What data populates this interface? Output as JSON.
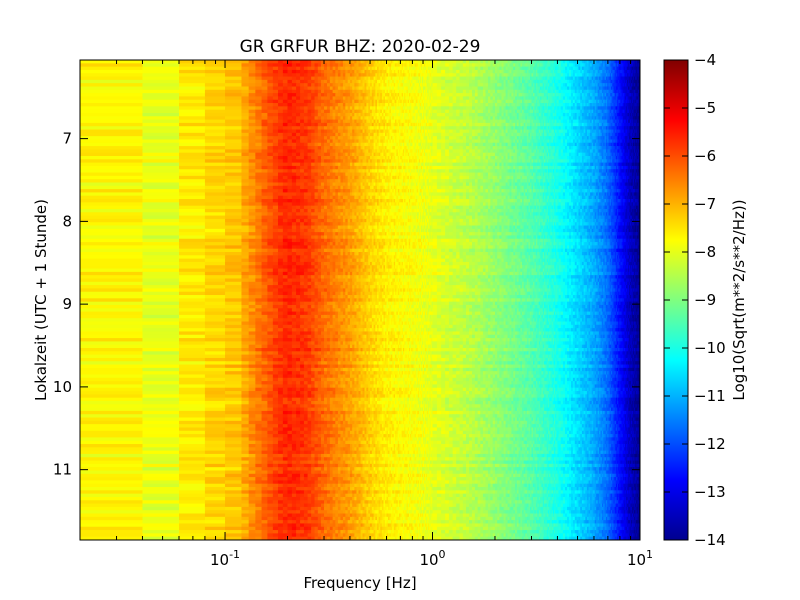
{
  "chart_data": {
    "type": "heatmap",
    "title": "GR GRFUR BHZ: 2020-02-29",
    "xlabel": "Frequency [Hz]",
    "ylabel": "Lokalzeit (UTC + 1 Stunde)",
    "x_scale": "log",
    "xlim": [
      0.02,
      10
    ],
    "x_ticks": [
      {
        "value": 0.1,
        "base": "10",
        "exp": "-1"
      },
      {
        "value": 1,
        "base": "10",
        "exp": "0"
      },
      {
        "value": 10,
        "base": "10",
        "exp": "1"
      }
    ],
    "ylim": [
      6.05,
      11.85
    ],
    "y_inverted": true,
    "y_ticks": [
      7,
      8,
      9,
      10,
      11
    ],
    "colorbar": {
      "label": "Log10(Sqrt(m**2/s**2/Hz))",
      "colormap": "jet",
      "range": [
        -14,
        -4
      ],
      "ticks": [
        -4,
        -5,
        -6,
        -7,
        -8,
        -9,
        -10,
        -11,
        -12,
        -13,
        -14
      ]
    },
    "spectral_profile": {
      "frequencies": [
        0.02,
        0.03,
        0.04,
        0.05,
        0.06,
        0.08,
        0.1,
        0.12,
        0.15,
        0.18,
        0.2,
        0.25,
        0.3,
        0.4,
        0.5,
        0.6,
        0.8,
        1,
        1.5,
        2,
        3,
        4,
        5,
        6,
        7,
        8,
        9,
        10
      ],
      "values": [
        -7.7,
        -7.7,
        -7.8,
        -8.0,
        -7.8,
        -7.3,
        -7.4,
        -7.0,
        -6.3,
        -5.8,
        -5.6,
        -5.8,
        -6.3,
        -6.8,
        -7.3,
        -7.6,
        -7.8,
        -8.0,
        -8.4,
        -8.8,
        -9.4,
        -10.0,
        -10.6,
        -11.1,
        -11.7,
        -12.6,
        -13.4,
        -13.8
      ]
    },
    "time_rows": 145
  }
}
